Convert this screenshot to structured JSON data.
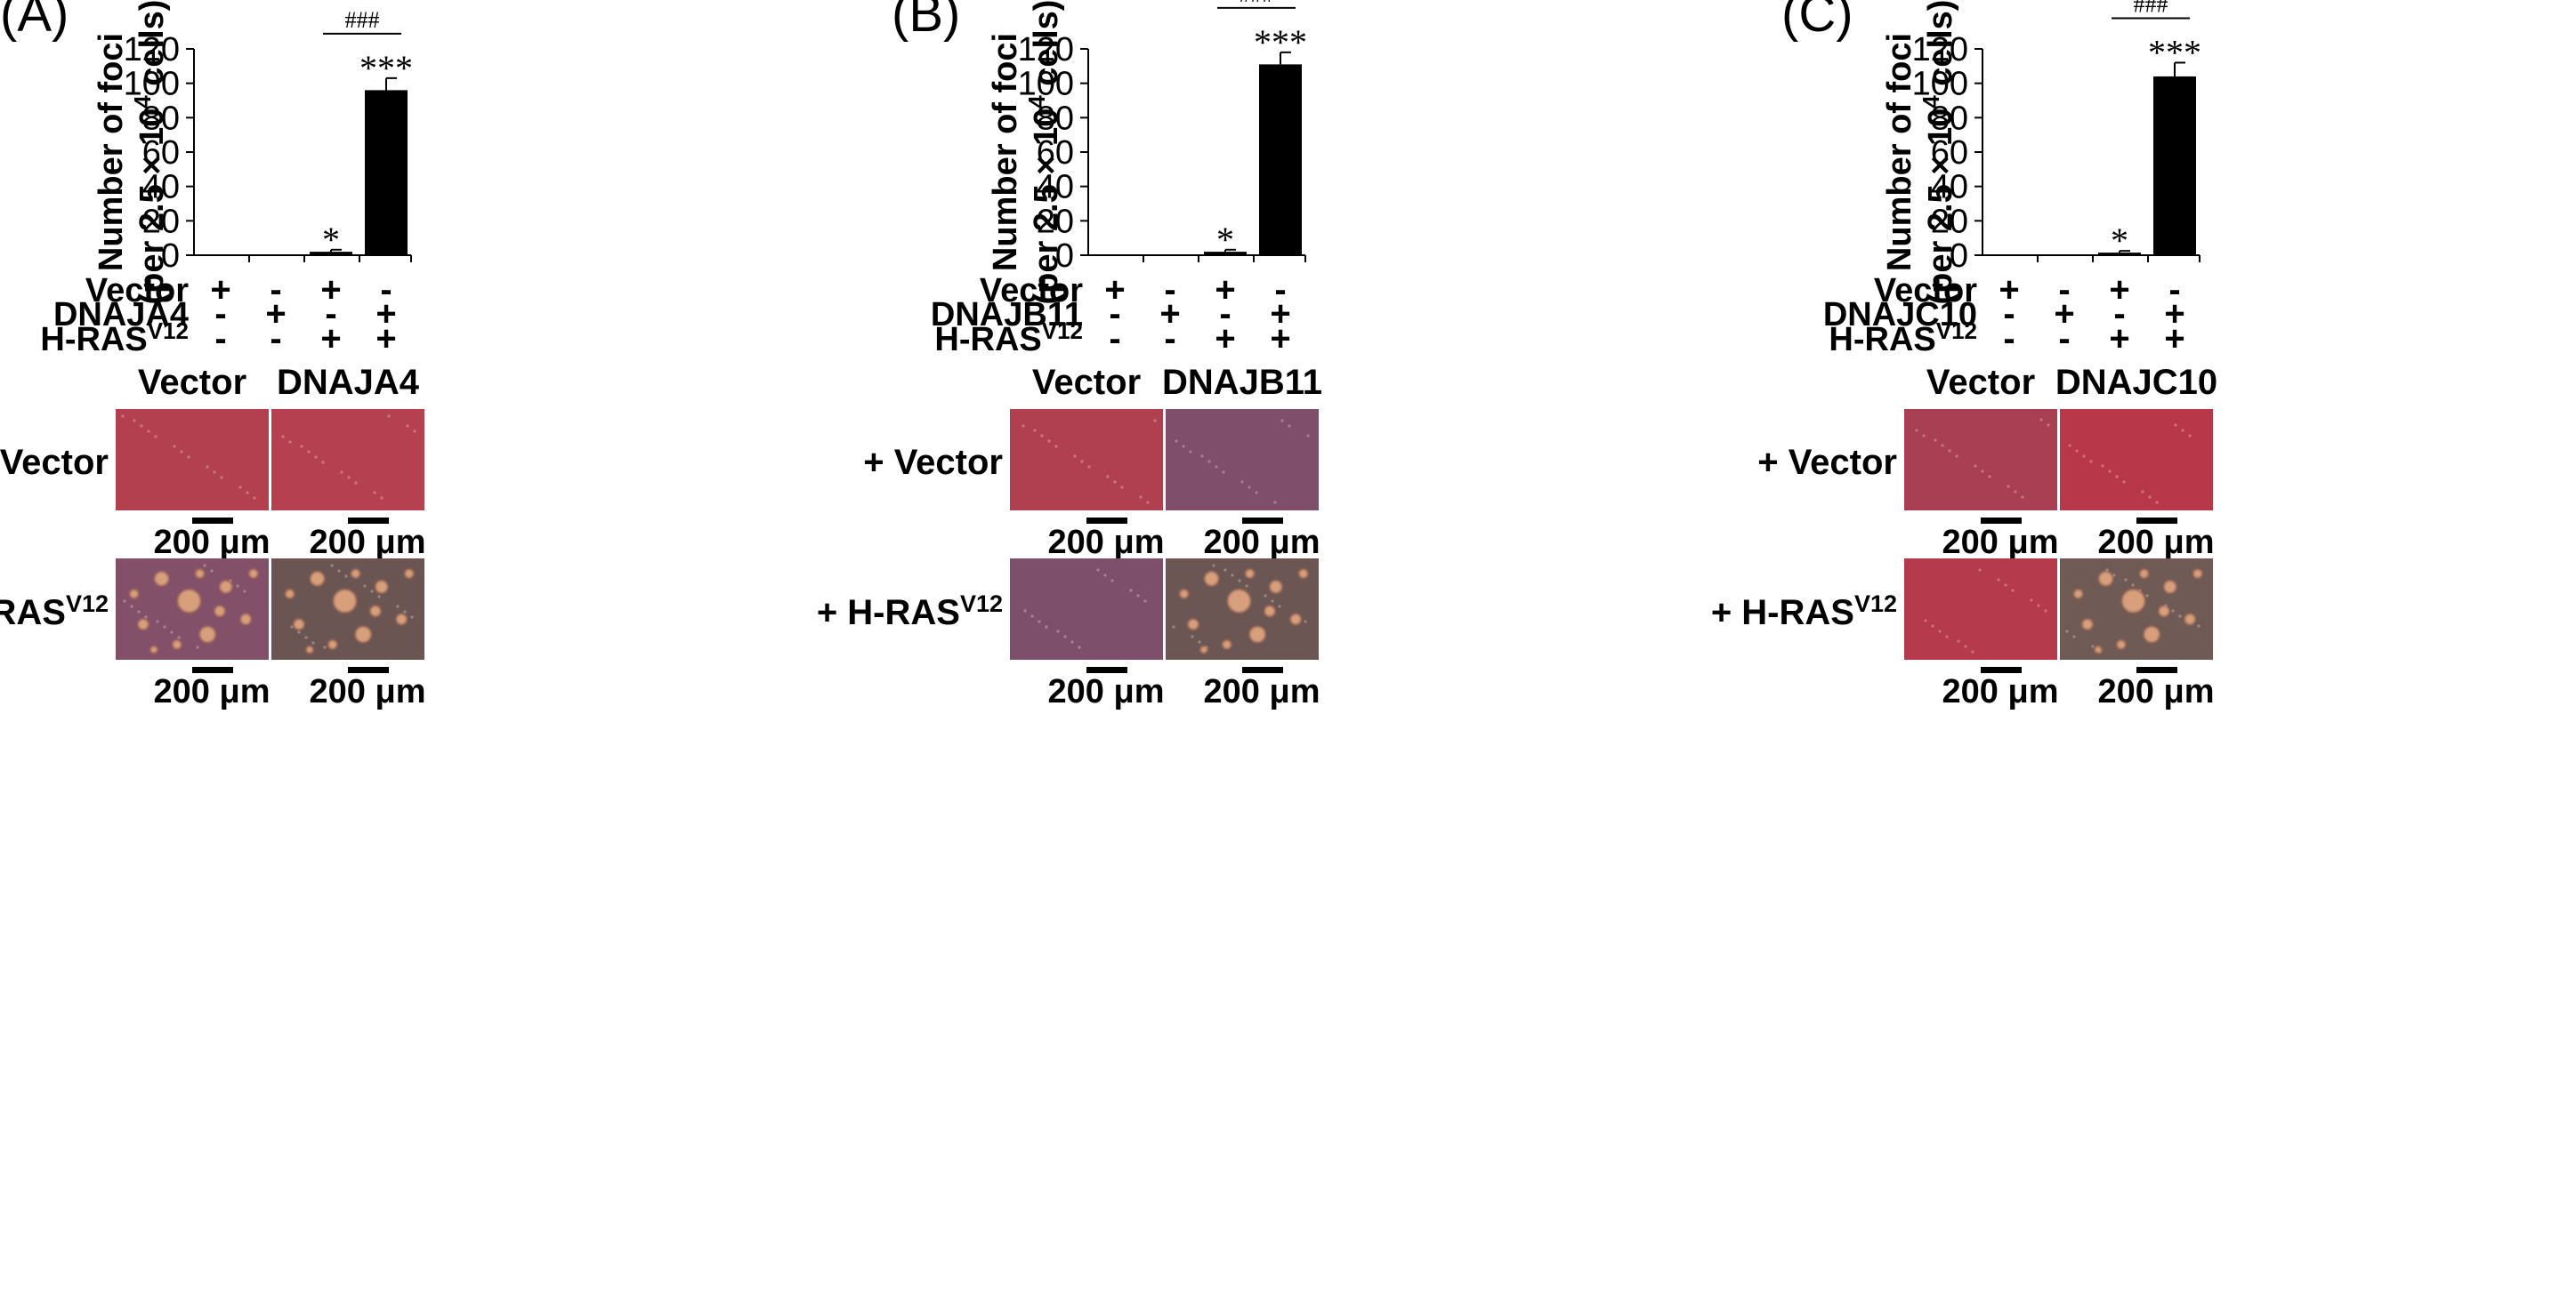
{
  "chart_data": [
    {
      "type": "bar",
      "panel_label": "(A)",
      "ylabel_line1": "Number of foci",
      "ylabel_line2_pre": "(per 2.5 × 10",
      "ylabel_line2_sup": "4",
      "ylabel_line2_post": " cells)",
      "ylim": [
        0,
        120
      ],
      "yticks": [
        0,
        20,
        40,
        60,
        80,
        100,
        120
      ],
      "values": [
        0,
        0,
        2,
        96
      ],
      "errors": [
        0,
        0,
        1.2,
        7
      ],
      "significance": [
        "",
        "",
        "*",
        "***"
      ],
      "comparison": "###",
      "conditions": [
        {
          "label": "Vector",
          "sup": "",
          "signs": [
            "+",
            "-",
            "+",
            "-"
          ]
        },
        {
          "label": "DNAJA4",
          "sup": "",
          "signs": [
            "-",
            "+",
            "-",
            "+"
          ]
        },
        {
          "label": "H-RAS",
          "sup": "V12",
          "signs": [
            "-",
            "-",
            "+",
            "+"
          ]
        }
      ]
    },
    {
      "type": "bar",
      "panel_label": "(B)",
      "ylabel_line1": "Number of foci",
      "ylabel_line2_pre": "(per 2.5 × 10",
      "ylabel_line2_sup": "4",
      "ylabel_line2_post": " cells)",
      "ylim": [
        0,
        120
      ],
      "yticks": [
        0,
        20,
        40,
        60,
        80,
        100,
        120
      ],
      "values": [
        0,
        0,
        2,
        111
      ],
      "errors": [
        0,
        0,
        1.2,
        7
      ],
      "significance": [
        "",
        "",
        "*",
        "***"
      ],
      "comparison": "###",
      "conditions": [
        {
          "label": "Vector",
          "sup": "",
          "signs": [
            "+",
            "-",
            "+",
            "-"
          ]
        },
        {
          "label": "DNAJB11",
          "sup": "",
          "signs": [
            "-",
            "+",
            "-",
            "+"
          ]
        },
        {
          "label": "H-RAS",
          "sup": "V12",
          "signs": [
            "-",
            "-",
            "+",
            "+"
          ]
        }
      ]
    },
    {
      "type": "bar",
      "panel_label": "(C)",
      "ylabel_line1": "Number of foci",
      "ylabel_line2_pre": "(per 2.5 × 10",
      "ylabel_line2_sup": "4",
      "ylabel_line2_post": " cells)",
      "ylim": [
        0,
        120
      ],
      "yticks": [
        0,
        20,
        40,
        60,
        80,
        100,
        120
      ],
      "values": [
        0,
        0,
        1.5,
        104
      ],
      "errors": [
        0,
        0,
        1,
        8
      ],
      "significance": [
        "",
        "",
        "*",
        "***"
      ],
      "comparison": "###",
      "conditions": [
        {
          "label": "Vector",
          "sup": "",
          "signs": [
            "+",
            "-",
            "+",
            "-"
          ]
        },
        {
          "label": "DNAJC10",
          "sup": "",
          "signs": [
            "-",
            "+",
            "-",
            "+"
          ]
        },
        {
          "label": "H-RAS",
          "sup": "V12",
          "signs": [
            "-",
            "-",
            "+",
            "+"
          ]
        }
      ]
    }
  ],
  "micrographs": [
    {
      "columns": [
        "Vector",
        "DNAJA4"
      ],
      "rows": [
        {
          "label": "+ Vector",
          "sup": ""
        },
        {
          "label": "+ H-RAS",
          "sup": "V12"
        }
      ],
      "scale_bar": "200 μm",
      "tiles": [
        {
          "color": "#b3404f",
          "foci": false
        },
        {
          "color": "#b54050",
          "foci": false
        },
        {
          "color": "#83506a",
          "foci": true
        },
        {
          "color": "#6a5553",
          "foci": true
        }
      ]
    },
    {
      "columns": [
        "Vector",
        "DNAJB11"
      ],
      "rows": [
        {
          "label": "+ Vector",
          "sup": ""
        },
        {
          "label": "+ H-RAS",
          "sup": "V12"
        }
      ],
      "scale_bar": "200 μm",
      "tiles": [
        {
          "color": "#b0404f",
          "foci": false
        },
        {
          "color": "#7e4e6a",
          "foci": false
        },
        {
          "color": "#7d4f6a",
          "foci": false
        },
        {
          "color": "#6b5654",
          "foci": true
        }
      ]
    },
    {
      "columns": [
        "Vector",
        "DNAJC10"
      ],
      "rows": [
        {
          "label": "+ Vector",
          "sup": ""
        },
        {
          "label": "+ H-RAS",
          "sup": "V12"
        }
      ],
      "scale_bar": "200 μm",
      "tiles": [
        {
          "color": "#a93f52",
          "foci": false
        },
        {
          "color": "#b8384a",
          "foci": false
        },
        {
          "color": "#b53a4b",
          "foci": false
        },
        {
          "color": "#6f5a55",
          "foci": true
        }
      ]
    }
  ]
}
